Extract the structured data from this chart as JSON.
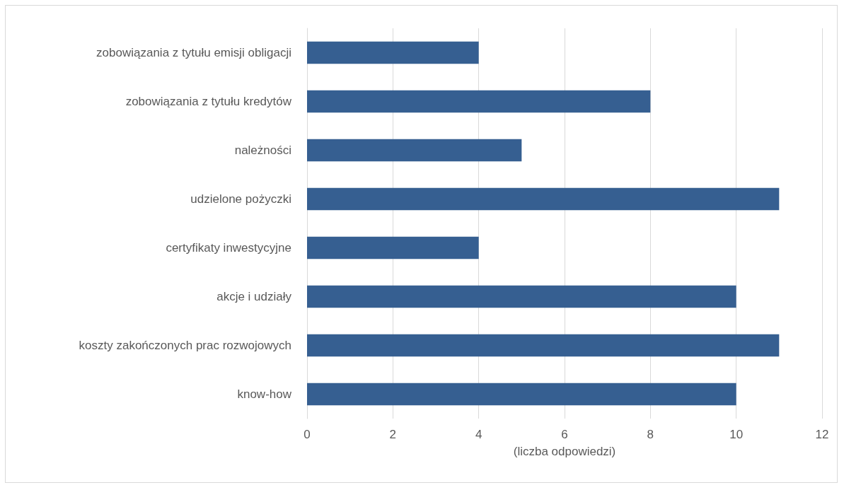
{
  "chart_data": {
    "type": "bar",
    "orientation": "horizontal",
    "xlabel": "(liczba odpowiedzi)",
    "categories": [
      "zobowiązania z tytułu emisji obligacji",
      "zobowiązania z tytułu kredytów",
      "należności",
      "udzielone pożyczki",
      "certyfikaty inwestycyjne",
      "akcje i udziały",
      "koszty zakończonych prac rozwojowych",
      "know-how"
    ],
    "values": [
      4,
      8,
      5,
      11,
      4,
      10,
      11,
      10
    ],
    "color": "#365f91",
    "xlim": [
      0,
      12
    ],
    "xticks": [
      0,
      2,
      4,
      6,
      8,
      10,
      12
    ],
    "grid": "x"
  }
}
